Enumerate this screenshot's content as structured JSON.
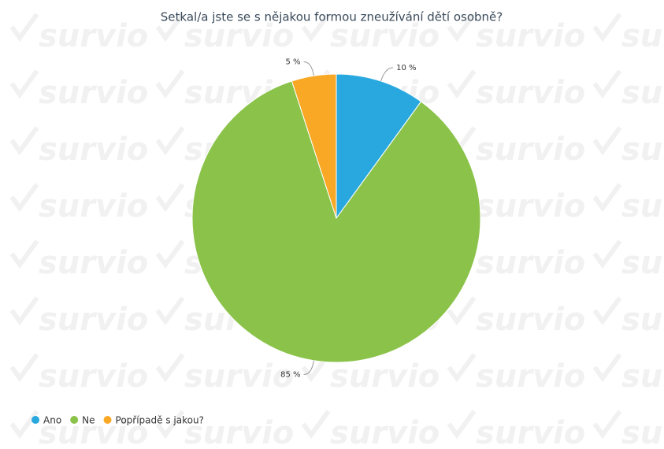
{
  "chart_data": {
    "type": "pie",
    "title": "Setkal/a jste se s nějakou formou zneužívání dětí osobně?",
    "watermark": "survio",
    "categories": [
      "Ano",
      "Ne",
      "Popřípadě s jakou?"
    ],
    "values": [
      10,
      85,
      5
    ],
    "value_labels": [
      "10 %",
      "85 %",
      "5 %"
    ],
    "colors": [
      "#29a8e0",
      "#8bc34a",
      "#f9a825"
    ],
    "legend": "bottom-left"
  }
}
